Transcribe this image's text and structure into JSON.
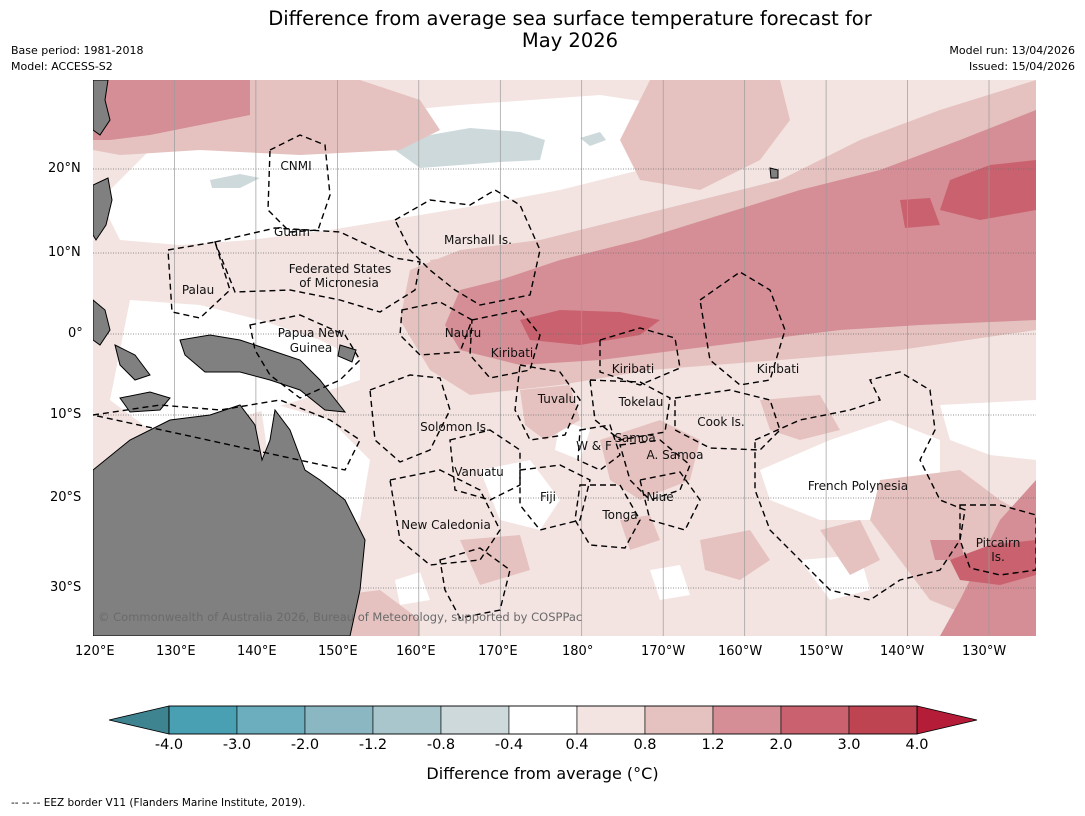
{
  "title_line1": "Difference from average sea surface temperature forecast for",
  "title_line2": "May 2026",
  "base_period": "Base period: 1981-2018",
  "model": "Model: ACCESS-S2",
  "model_run": "Model run: 13/04/2026",
  "issued": "Issued: 15/04/2026",
  "lon_ticks": [
    "120°E",
    "130°E",
    "140°E",
    "150°E",
    "160°E",
    "170°E",
    "180°",
    "170°W",
    "160°W",
    "150°W",
    "140°W",
    "130°W"
  ],
  "lat_ticks": [
    "20°N",
    "10°N",
    "0°",
    "10°S",
    "20°S",
    "30°S"
  ],
  "places": {
    "cnmi": "CNMI",
    "guam": "Guam",
    "marshall": "Marshall Is.",
    "fsm1": "Federated States",
    "fsm2": "of Micronesia",
    "palau": "Palau",
    "png1": "Papua New",
    "png2": "Guinea",
    "nauru": "Nauru",
    "kiribati_w": "Kiribati",
    "kiribati_c": "Kiribati",
    "kiribati_e": "Kiribati",
    "tuvalu": "Tuvalu",
    "tokelau": "Tokelau",
    "cook": "Cook Is.",
    "solomon": "Solomon Is.",
    "wf": "W & F",
    "samoa": "Samoa",
    "asamoa": "A. Samoa",
    "vanuatu": "Vanuatu",
    "fiji": "Fiji",
    "niue": "Niue",
    "tonga": "Tonga",
    "frpoly": "French Polynesia",
    "newcal": "New Caledonia",
    "pitcairn1": "Pitcairn",
    "pitcairn2": "Is."
  },
  "copyright": "© Commonwealth of Australia 2026, Bureau of Meteorology, supported by COSPPac",
  "colorbar": {
    "ticks": [
      "-4.0",
      "-3.0",
      "-2.0",
      "-1.2",
      "-0.8",
      "-0.4",
      "0.4",
      "0.8",
      "1.2",
      "2.0",
      "3.0",
      "4.0"
    ],
    "colors": [
      "#3e8390",
      "#4aa0b3",
      "#6daebe",
      "#8ab7c2",
      "#a8c6cc",
      "#cdd9db",
      "#ffffff",
      "#f3e4e2",
      "#e5c2bf",
      "#d58e96",
      "#c9626e",
      "#be4452",
      "#b41c37"
    ],
    "title": "Difference from average (°C)"
  },
  "footer": "--  --  -- EEZ border V11 (Flanders Marine Institute, 2019)."
}
